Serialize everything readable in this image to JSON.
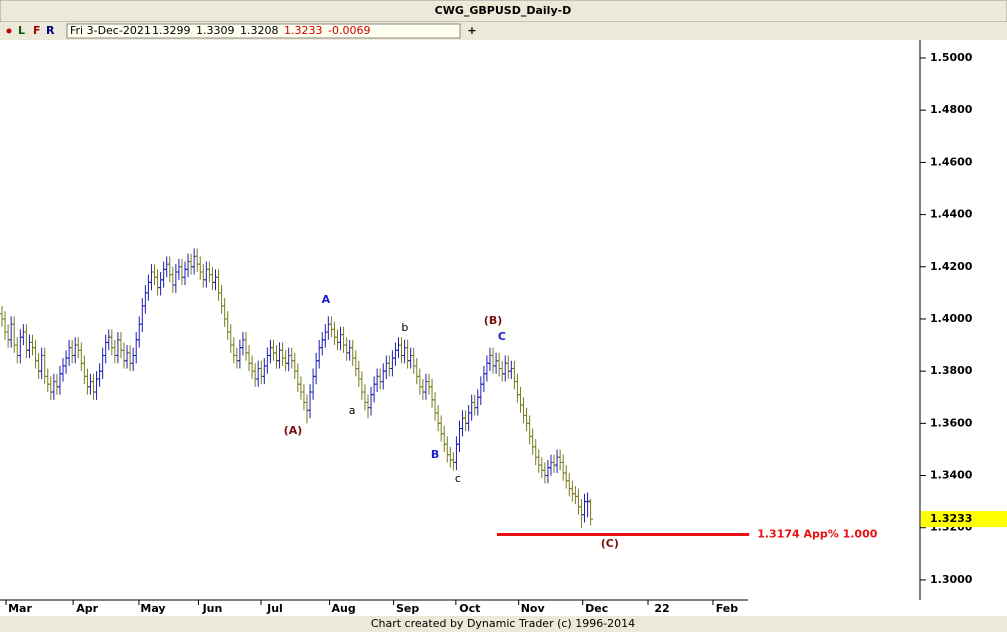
{
  "chart_data": {
    "type": "ohlc",
    "title": "CWG_GBPUSD_Daily-D",
    "toolbar": [
      "L",
      "F",
      "R"
    ],
    "info": {
      "date": "Fri 3-Dec-2021",
      "change": -0.0069
    },
    "footer": "Chart created by Dynamic Trader  (c) 1996-2014",
    "up_color": "#1c1cb4",
    "down_color": "#7a7a1e",
    "xlim": [
      -0.66,
      301
    ],
    "xticks": [
      {
        "value": 5.9,
        "label": "Mar"
      },
      {
        "value": 27.9,
        "label": "Apr"
      },
      {
        "value": 49.5,
        "label": "May"
      },
      {
        "value": 69,
        "label": "Jun"
      },
      {
        "value": 89.5,
        "label": "Jul"
      },
      {
        "value": 112,
        "label": "Aug"
      },
      {
        "value": 133,
        "label": "Sep"
      },
      {
        "value": 153.4,
        "label": "Oct"
      },
      {
        "value": 174,
        "label": "Nov"
      },
      {
        "value": 195,
        "label": "Dec"
      },
      {
        "value": 216.4,
        "label": "22"
      },
      {
        "value": 237.7,
        "label": "Feb"
      }
    ],
    "ylim": [
      1.2923,
      1.5069
    ],
    "yticks": [
      {
        "value": 1.3,
        "label": "1.3000"
      },
      {
        "value": 1.32,
        "label": "1.3200"
      },
      {
        "value": 1.34,
        "label": "1.3400"
      },
      {
        "value": 1.36,
        "label": "1.3600"
      },
      {
        "value": 1.38,
        "label": "1.3800"
      },
      {
        "value": 1.4,
        "label": "1.4000"
      },
      {
        "value": 1.42,
        "label": "1.4200"
      },
      {
        "value": 1.44,
        "label": "1.4400"
      },
      {
        "value": 1.46,
        "label": "1.4600"
      },
      {
        "value": 1.48,
        "label": "1.4800"
      },
      {
        "value": 1.5,
        "label": "1.5000"
      }
    ],
    "projection": {
      "value": 1.3174,
      "label": "1.3174 App% 1.000",
      "from": 162.3,
      "to": 245,
      "color": "#e81010"
    },
    "annotations": [
      {
        "text": "A",
        "x": 106.2,
        "y": 1.4073,
        "color": "#1c1cd0"
      },
      {
        "text": "(A)",
        "x": 95.4,
        "y": 1.3571,
        "color": "#7a1010"
      },
      {
        "text": "a",
        "x": 114.8,
        "y": 1.3648,
        "color": "#000000"
      },
      {
        "text": "b",
        "x": 132.1,
        "y": 1.3966,
        "color": "#000000"
      },
      {
        "text": "B",
        "x": 142.0,
        "y": 1.3479,
        "color": "#1c1cd0"
      },
      {
        "text": "c",
        "x": 149.5,
        "y": 1.3387,
        "color": "#000000"
      },
      {
        "text": "(B)",
        "x": 161.0,
        "y": 1.3992,
        "color": "#7a1010"
      },
      {
        "text": "C",
        "x": 163.9,
        "y": 1.3931,
        "color": "#1c1cd0"
      },
      {
        "text": "(C)",
        "x": 199.3,
        "y": 1.3138,
        "color": "#7a1010"
      }
    ],
    "ohlc": [
      [
        1.402,
        1.405,
        1.397,
        1.4
      ],
      [
        1.4,
        1.403,
        1.392,
        1.395
      ],
      [
        1.395,
        1.398,
        1.389,
        1.392
      ],
      [
        1.392,
        1.401,
        1.389,
        1.398
      ],
      [
        1.398,
        1.401,
        1.387,
        1.39
      ],
      [
        1.39,
        1.393,
        1.383,
        1.386
      ],
      [
        1.386,
        1.396,
        1.383,
        1.393
      ],
      [
        1.393,
        1.398,
        1.39,
        1.395
      ],
      [
        1.395,
        1.398,
        1.385,
        1.388
      ],
      [
        1.388,
        1.394,
        1.385,
        1.391
      ],
      [
        1.391,
        1.394,
        1.386,
        1.389
      ],
      [
        1.389,
        1.392,
        1.381,
        1.384
      ],
      [
        1.384,
        1.387,
        1.377,
        1.38
      ],
      [
        1.38,
        1.389,
        1.377,
        1.386
      ],
      [
        1.386,
        1.389,
        1.375,
        1.378
      ],
      [
        1.378,
        1.381,
        1.372,
        1.375
      ],
      [
        1.375,
        1.378,
        1.369,
        1.372
      ],
      [
        1.372,
        1.379,
        1.369,
        1.376
      ],
      [
        1.376,
        1.379,
        1.371,
        1.374
      ],
      [
        1.374,
        1.382,
        1.371,
        1.379
      ],
      [
        1.379,
        1.385,
        1.376,
        1.382
      ],
      [
        1.382,
        1.388,
        1.379,
        1.385
      ],
      [
        1.385,
        1.392,
        1.382,
        1.389
      ],
      [
        1.389,
        1.392,
        1.383,
        1.386
      ],
      [
        1.386,
        1.393,
        1.383,
        1.39
      ],
      [
        1.39,
        1.393,
        1.385,
        1.388
      ],
      [
        1.388,
        1.391,
        1.38,
        1.383
      ],
      [
        1.383,
        1.386,
        1.375,
        1.378
      ],
      [
        1.378,
        1.381,
        1.371,
        1.374
      ],
      [
        1.374,
        1.379,
        1.371,
        1.376
      ],
      [
        1.376,
        1.379,
        1.369,
        1.372
      ],
      [
        1.372,
        1.38,
        1.369,
        1.377
      ],
      [
        1.377,
        1.383,
        1.374,
        1.38
      ],
      [
        1.38,
        1.389,
        1.377,
        1.386
      ],
      [
        1.386,
        1.394,
        1.383,
        1.391
      ],
      [
        1.391,
        1.396,
        1.388,
        1.393
      ],
      [
        1.393,
        1.396,
        1.386,
        1.389
      ],
      [
        1.389,
        1.392,
        1.383,
        1.386
      ],
      [
        1.386,
        1.395,
        1.383,
        1.392
      ],
      [
        1.392,
        1.395,
        1.385,
        1.388
      ],
      [
        1.388,
        1.391,
        1.381,
        1.384
      ],
      [
        1.384,
        1.39,
        1.381,
        1.387
      ],
      [
        1.387,
        1.39,
        1.38,
        1.383
      ],
      [
        1.383,
        1.389,
        1.38,
        1.386
      ],
      [
        1.386,
        1.395,
        1.383,
        1.392
      ],
      [
        1.392,
        1.401,
        1.389,
        1.398
      ],
      [
        1.398,
        1.408,
        1.395,
        1.405
      ],
      [
        1.405,
        1.413,
        1.402,
        1.41
      ],
      [
        1.41,
        1.417,
        1.407,
        1.414
      ],
      [
        1.414,
        1.421,
        1.411,
        1.418
      ],
      [
        1.418,
        1.421,
        1.413,
        1.416
      ],
      [
        1.416,
        1.419,
        1.409,
        1.412
      ],
      [
        1.412,
        1.418,
        1.409,
        1.415
      ],
      [
        1.415,
        1.422,
        1.412,
        1.419
      ],
      [
        1.419,
        1.424,
        1.416,
        1.421
      ],
      [
        1.421,
        1.424,
        1.414,
        1.417
      ],
      [
        1.417,
        1.42,
        1.41,
        1.413
      ],
      [
        1.413,
        1.421,
        1.41,
        1.418
      ],
      [
        1.418,
        1.423,
        1.415,
        1.42
      ],
      [
        1.42,
        1.423,
        1.413,
        1.416
      ],
      [
        1.416,
        1.422,
        1.413,
        1.419
      ],
      [
        1.419,
        1.425,
        1.416,
        1.422
      ],
      [
        1.422,
        1.425,
        1.417,
        1.42
      ],
      [
        1.42,
        1.427,
        1.417,
        1.424
      ],
      [
        1.424,
        1.427,
        1.418,
        1.421
      ],
      [
        1.421,
        1.424,
        1.415,
        1.418
      ],
      [
        1.418,
        1.421,
        1.412,
        1.415
      ],
      [
        1.415,
        1.422,
        1.412,
        1.419
      ],
      [
        1.419,
        1.422,
        1.414,
        1.417
      ],
      [
        1.417,
        1.42,
        1.411,
        1.414
      ],
      [
        1.414,
        1.419,
        1.411,
        1.416
      ],
      [
        1.416,
        1.419,
        1.407,
        1.41
      ],
      [
        1.41,
        1.413,
        1.402,
        1.405
      ],
      [
        1.405,
        1.408,
        1.397,
        1.4
      ],
      [
        1.4,
        1.403,
        1.392,
        1.395
      ],
      [
        1.395,
        1.398,
        1.387,
        1.39
      ],
      [
        1.39,
        1.393,
        1.383,
        1.386
      ],
      [
        1.386,
        1.389,
        1.381,
        1.384
      ],
      [
        1.384,
        1.392,
        1.381,
        1.389
      ],
      [
        1.389,
        1.395,
        1.386,
        1.392
      ],
      [
        1.392,
        1.395,
        1.384,
        1.387
      ],
      [
        1.387,
        1.39,
        1.38,
        1.383
      ],
      [
        1.383,
        1.386,
        1.377,
        1.38
      ],
      [
        1.38,
        1.383,
        1.374,
        1.377
      ],
      [
        1.377,
        1.384,
        1.374,
        1.381
      ],
      [
        1.381,
        1.384,
        1.375,
        1.378
      ],
      [
        1.378,
        1.385,
        1.375,
        1.382
      ],
      [
        1.382,
        1.389,
        1.379,
        1.386
      ],
      [
        1.386,
        1.392,
        1.383,
        1.389
      ],
      [
        1.389,
        1.392,
        1.384,
        1.387
      ],
      [
        1.387,
        1.39,
        1.381,
        1.384
      ],
      [
        1.384,
        1.391,
        1.381,
        1.388
      ],
      [
        1.388,
        1.391,
        1.382,
        1.385
      ],
      [
        1.385,
        1.388,
        1.38,
        1.383
      ],
      [
        1.383,
        1.389,
        1.38,
        1.386
      ],
      [
        1.386,
        1.389,
        1.381,
        1.384
      ],
      [
        1.384,
        1.387,
        1.377,
        1.38
      ],
      [
        1.38,
        1.383,
        1.372,
        1.375
      ],
      [
        1.375,
        1.378,
        1.369,
        1.372
      ],
      [
        1.372,
        1.375,
        1.365,
        1.368
      ],
      [
        1.368,
        1.371,
        1.36,
        1.365
      ],
      [
        1.365,
        1.375,
        1.362,
        1.372
      ],
      [
        1.372,
        1.381,
        1.369,
        1.378
      ],
      [
        1.378,
        1.387,
        1.375,
        1.384
      ],
      [
        1.384,
        1.392,
        1.381,
        1.389
      ],
      [
        1.389,
        1.395,
        1.386,
        1.392
      ],
      [
        1.392,
        1.398,
        1.389,
        1.395
      ],
      [
        1.395,
        1.401,
        1.392,
        1.398
      ],
      [
        1.398,
        1.401,
        1.393,
        1.396
      ],
      [
        1.396,
        1.399,
        1.39,
        1.393
      ],
      [
        1.393,
        1.396,
        1.388,
        1.391
      ],
      [
        1.391,
        1.397,
        1.388,
        1.394
      ],
      [
        1.394,
        1.397,
        1.387,
        1.39
      ],
      [
        1.39,
        1.393,
        1.384,
        1.387
      ],
      [
        1.387,
        1.392,
        1.384,
        1.389
      ],
      [
        1.389,
        1.392,
        1.382,
        1.385
      ],
      [
        1.385,
        1.388,
        1.378,
        1.381
      ],
      [
        1.381,
        1.384,
        1.374,
        1.377
      ],
      [
        1.377,
        1.38,
        1.369,
        1.372
      ],
      [
        1.372,
        1.375,
        1.365,
        1.368
      ],
      [
        1.368,
        1.371,
        1.362,
        1.366
      ],
      [
        1.366,
        1.374,
        1.363,
        1.371
      ],
      [
        1.371,
        1.378,
        1.368,
        1.375
      ],
      [
        1.375,
        1.381,
        1.372,
        1.378
      ],
      [
        1.378,
        1.381,
        1.373,
        1.376
      ],
      [
        1.376,
        1.383,
        1.373,
        1.38
      ],
      [
        1.38,
        1.386,
        1.377,
        1.383
      ],
      [
        1.383,
        1.386,
        1.378,
        1.381
      ],
      [
        1.381,
        1.388,
        1.378,
        1.385
      ],
      [
        1.385,
        1.391,
        1.382,
        1.388
      ],
      [
        1.388,
        1.393,
        1.385,
        1.39
      ],
      [
        1.39,
        1.393,
        1.383,
        1.386
      ],
      [
        1.386,
        1.392,
        1.383,
        1.389
      ],
      [
        1.389,
        1.392,
        1.381,
        1.384
      ],
      [
        1.384,
        1.389,
        1.381,
        1.386
      ],
      [
        1.386,
        1.389,
        1.379,
        1.382
      ],
      [
        1.382,
        1.385,
        1.375,
        1.378
      ],
      [
        1.378,
        1.381,
        1.371,
        1.374
      ],
      [
        1.374,
        1.377,
        1.369,
        1.372
      ],
      [
        1.372,
        1.379,
        1.369,
        1.376
      ],
      [
        1.376,
        1.379,
        1.371,
        1.374
      ],
      [
        1.374,
        1.377,
        1.366,
        1.369
      ],
      [
        1.369,
        1.372,
        1.361,
        1.364
      ],
      [
        1.364,
        1.367,
        1.357,
        1.36
      ],
      [
        1.36,
        1.363,
        1.353,
        1.356
      ],
      [
        1.356,
        1.359,
        1.349,
        1.352
      ],
      [
        1.352,
        1.355,
        1.345,
        1.348
      ],
      [
        1.348,
        1.351,
        1.343,
        1.346
      ],
      [
        1.346,
        1.349,
        1.342,
        1.345
      ],
      [
        1.345,
        1.355,
        1.342,
        1.352
      ],
      [
        1.352,
        1.361,
        1.349,
        1.358
      ],
      [
        1.358,
        1.365,
        1.355,
        1.362
      ],
      [
        1.362,
        1.365,
        1.357,
        1.36
      ],
      [
        1.36,
        1.367,
        1.357,
        1.364
      ],
      [
        1.364,
        1.371,
        1.361,
        1.368
      ],
      [
        1.368,
        1.371,
        1.363,
        1.366
      ],
      [
        1.366,
        1.373,
        1.363,
        1.37
      ],
      [
        1.37,
        1.378,
        1.367,
        1.375
      ],
      [
        1.375,
        1.382,
        1.372,
        1.379
      ],
      [
        1.379,
        1.386,
        1.376,
        1.383
      ],
      [
        1.383,
        1.389,
        1.38,
        1.386
      ],
      [
        1.386,
        1.389,
        1.379,
        1.382
      ],
      [
        1.382,
        1.387,
        1.379,
        1.384
      ],
      [
        1.384,
        1.387,
        1.378,
        1.381
      ],
      [
        1.381,
        1.384,
        1.376,
        1.379
      ],
      [
        1.379,
        1.386,
        1.376,
        1.383
      ],
      [
        1.383,
        1.386,
        1.377,
        1.38
      ],
      [
        1.38,
        1.384,
        1.377,
        1.381
      ],
      [
        1.381,
        1.384,
        1.373,
        1.376
      ],
      [
        1.376,
        1.379,
        1.368,
        1.371
      ],
      [
        1.371,
        1.374,
        1.364,
        1.367
      ],
      [
        1.367,
        1.37,
        1.36,
        1.363
      ],
      [
        1.363,
        1.366,
        1.357,
        1.36
      ],
      [
        1.36,
        1.363,
        1.352,
        1.355
      ],
      [
        1.355,
        1.358,
        1.348,
        1.351
      ],
      [
        1.351,
        1.354,
        1.344,
        1.347
      ],
      [
        1.347,
        1.35,
        1.341,
        1.344
      ],
      [
        1.344,
        1.347,
        1.339,
        1.342
      ],
      [
        1.342,
        1.345,
        1.337,
        1.34
      ],
      [
        1.34,
        1.346,
        1.337,
        1.343
      ],
      [
        1.343,
        1.348,
        1.34,
        1.345
      ],
      [
        1.345,
        1.348,
        1.341,
        1.344
      ],
      [
        1.344,
        1.35,
        1.341,
        1.347
      ],
      [
        1.347,
        1.35,
        1.342,
        1.345
      ],
      [
        1.345,
        1.348,
        1.338,
        1.341
      ],
      [
        1.341,
        1.344,
        1.335,
        1.338
      ],
      [
        1.338,
        1.341,
        1.332,
        1.335
      ],
      [
        1.335,
        1.338,
        1.33,
        1.333
      ],
      [
        1.333,
        1.336,
        1.329,
        1.332
      ],
      [
        1.332,
        1.335,
        1.325,
        1.328
      ],
      [
        1.328,
        1.331,
        1.32,
        1.325
      ],
      [
        1.325,
        1.333,
        1.322,
        1.33
      ],
      [
        1.33,
        1.3335,
        1.324,
        1.3302
      ],
      [
        1.3299,
        1.3309,
        1.3208,
        1.3233
      ]
    ]
  }
}
